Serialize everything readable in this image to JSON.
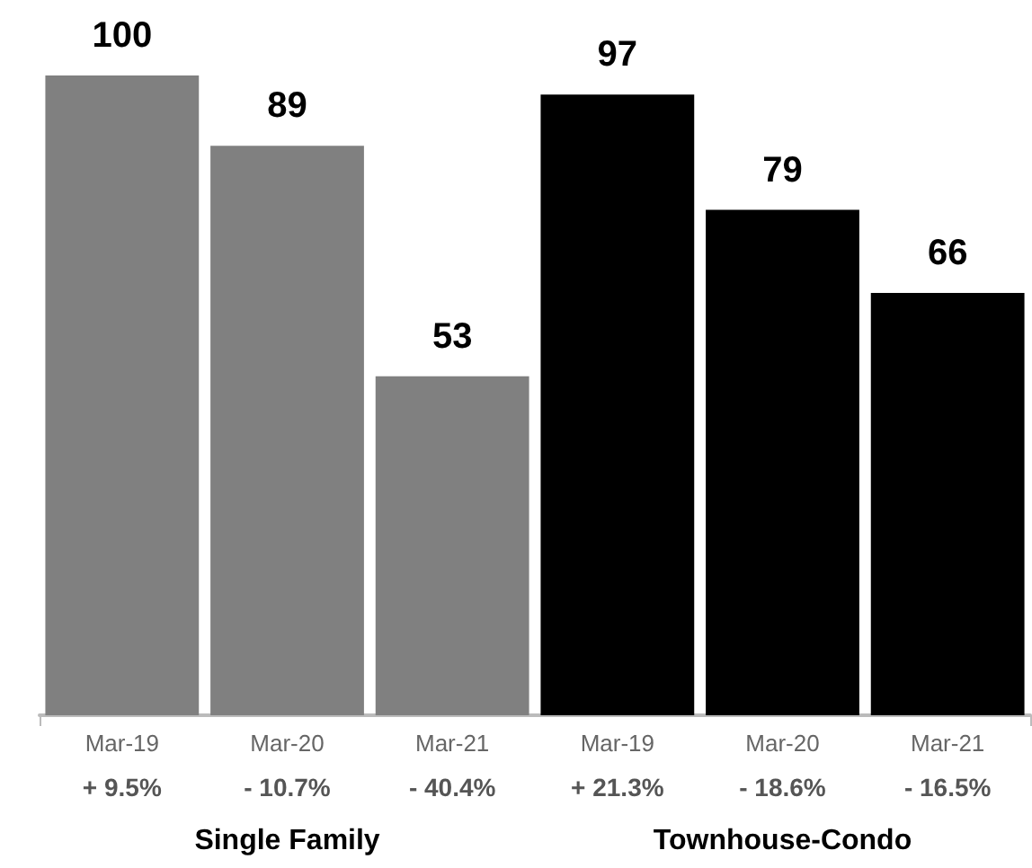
{
  "chart_data": {
    "type": "bar",
    "categories": [
      "Mar-19",
      "Mar-20",
      "Mar-21",
      "Mar-19",
      "Mar-20",
      "Mar-21"
    ],
    "values": [
      100,
      89,
      53,
      97,
      79,
      66
    ],
    "colors": [
      "#808080",
      "#808080",
      "#808080",
      "#000000",
      "#000000",
      "#000000"
    ],
    "data_labels": true,
    "annotations": [
      "+ 9.5%",
      "- 10.7%",
      "- 40.4%",
      "+ 21.3%",
      "- 18.6%",
      "- 16.5%",
      "Single Family",
      "Townhouse-Condo"
    ]
  }
}
